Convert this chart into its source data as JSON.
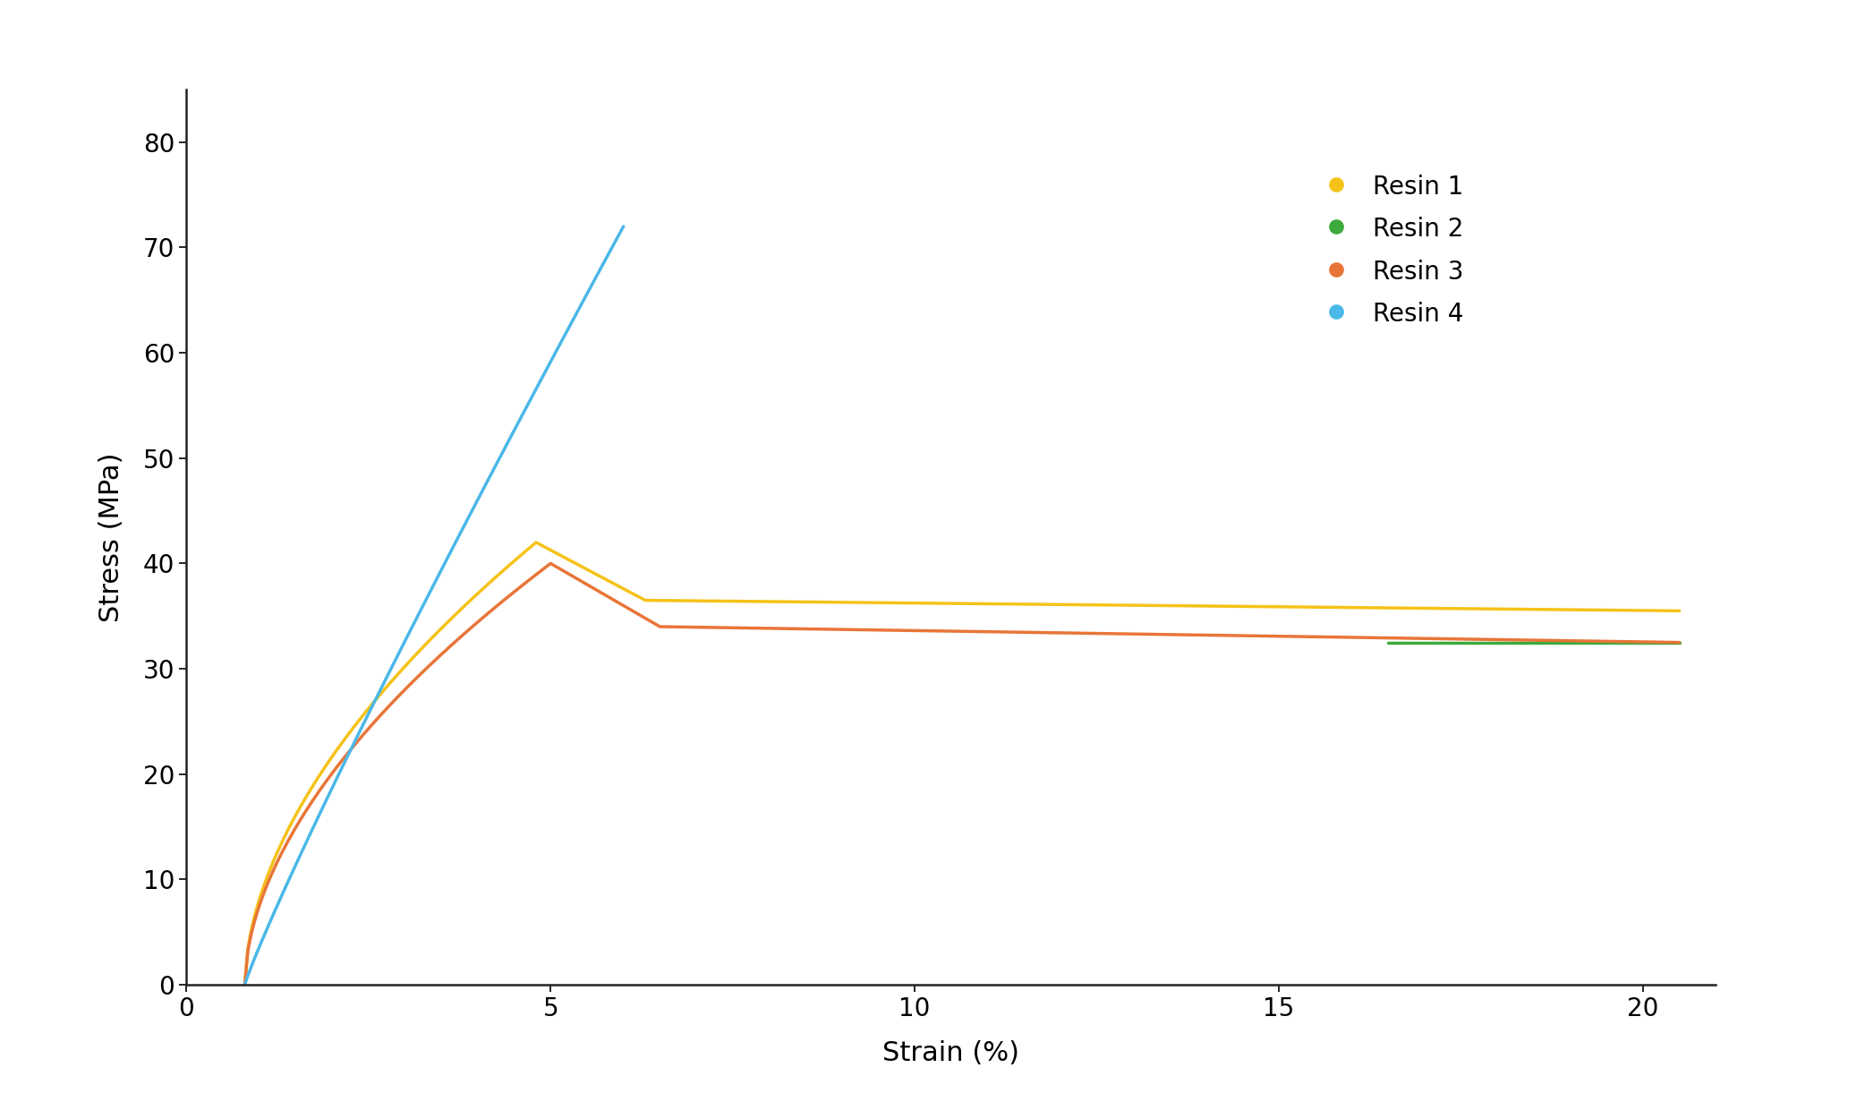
{
  "title": "",
  "xlabel": "Strain (%)",
  "ylabel": "Stress (MPa)",
  "xlim": [
    0,
    21
  ],
  "ylim": [
    0,
    85
  ],
  "xticks": [
    0,
    5,
    10,
    15,
    20
  ],
  "yticks": [
    0,
    10,
    20,
    30,
    40,
    50,
    60,
    70,
    80
  ],
  "background_color": "#ffffff",
  "legend_labels": [
    "Resin 1",
    "Resin 2",
    "Resin 3",
    "Resin 4"
  ],
  "colors": {
    "resin1": "#F5C218",
    "resin2": "#3DAA3D",
    "resin3": "#E87538",
    "resin4": "#4AB8E8"
  },
  "linewidth": 2.5
}
